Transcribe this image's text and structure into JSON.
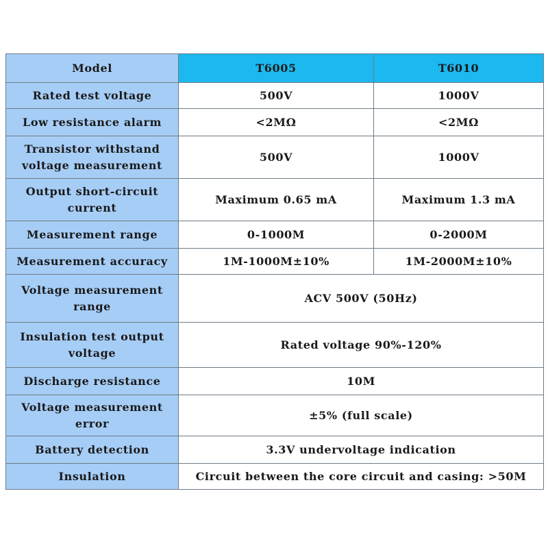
{
  "header": {
    "label": "Model",
    "models": [
      "T6005",
      "T6010"
    ]
  },
  "rows": [
    {
      "label": "Rated test voltage",
      "values": [
        "500V",
        "1000V"
      ]
    },
    {
      "label": "Low resistance alarm",
      "values": [
        "<2MΩ",
        "<2MΩ"
      ]
    },
    {
      "label": "Transistor withstand voltage measurement",
      "values": [
        "500V",
        "1000V"
      ]
    },
    {
      "label": "Output short-circuit current",
      "values": [
        "Maximum 0.65 mA",
        "Maximum 1.3 mA"
      ]
    },
    {
      "label": "Measurement range",
      "values": [
        "0-1000M",
        "0-2000M"
      ]
    },
    {
      "label": "Measurement accuracy",
      "values": [
        "1M-1000M±10%",
        "1M-2000M±10%"
      ]
    },
    {
      "label": "Voltage measurement range",
      "value": "ACV 500V (50Hz)"
    },
    {
      "label": "Insulation test output voltage",
      "value": "Rated voltage 90%-120%"
    },
    {
      "label": "Discharge resistance",
      "value": "10M"
    },
    {
      "label": "Voltage measurement error",
      "value": "±5% (full scale)"
    },
    {
      "label": "Battery detection",
      "value": "3.3V undervoltage indication"
    },
    {
      "label": "Insulation",
      "value": "Circuit between the core circuit and casing: >50M"
    }
  ],
  "colors": {
    "label_bg": "#a6cdf6",
    "header_bg": "#1cb8f0",
    "border": "#6e7a86"
  }
}
